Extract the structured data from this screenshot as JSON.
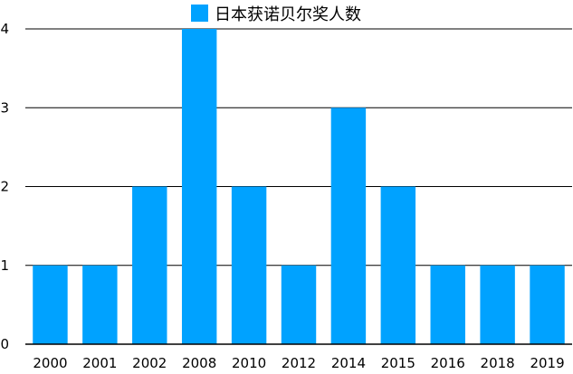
{
  "chart_data": {
    "type": "bar",
    "categories": [
      "2000",
      "2001",
      "2002",
      "2008",
      "2010",
      "2012",
      "2014",
      "2015",
      "2016",
      "2018",
      "2019"
    ],
    "series": [
      {
        "name": "日本获诺贝尔奖人数",
        "values": [
          1,
          1,
          2,
          4,
          2,
          1,
          3,
          2,
          1,
          1,
          1
        ],
        "color": "#00A2FF"
      }
    ],
    "ylim": [
      0,
      4
    ],
    "yticks": [
      0,
      1,
      2,
      3,
      4
    ],
    "grid": true,
    "legend_position": "top-center",
    "title": "",
    "xlabel": "",
    "ylabel": ""
  }
}
